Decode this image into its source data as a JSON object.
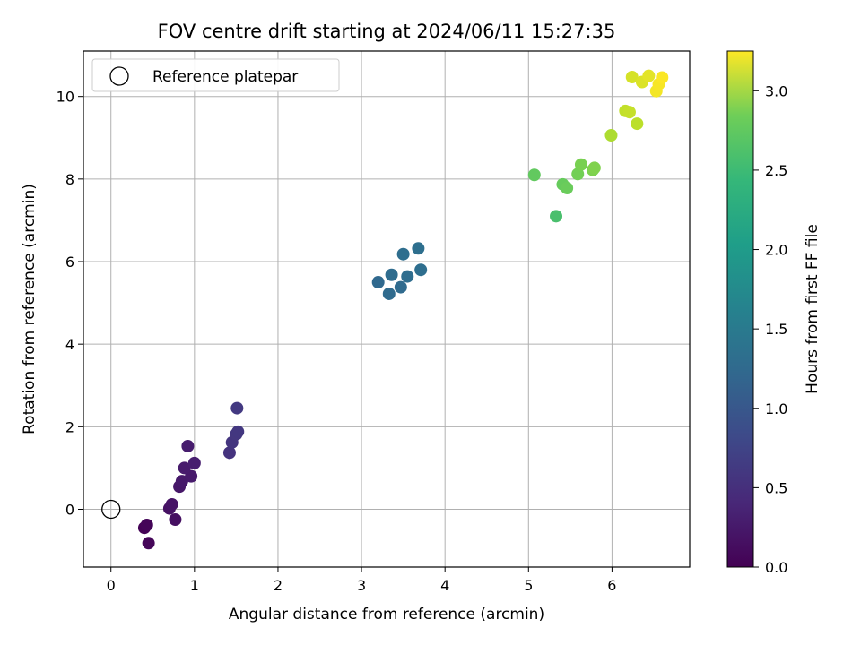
{
  "chart_data": {
    "type": "scatter",
    "title": "FOV centre drift starting at 2024/06/11 15:27:35",
    "xlabel": "Angular distance from reference (arcmin)",
    "ylabel": "Rotation from reference (arcmin)",
    "xlim": [
      -0.33,
      6.93
    ],
    "ylim": [
      -1.4,
      11.1
    ],
    "xticks": [
      0,
      1,
      2,
      3,
      4,
      5,
      6
    ],
    "yticks": [
      0,
      2,
      4,
      6,
      8,
      10
    ],
    "grid": true,
    "legend": {
      "placement": "top-left",
      "entries": [
        "Reference platepar"
      ]
    },
    "reference_point": {
      "label": "Reference platepar",
      "x": 0,
      "y": 0,
      "marker": "open-circle"
    },
    "colorbar": {
      "label": "Hours from first FF file",
      "colormap": "viridis",
      "range": [
        0.0,
        3.25
      ],
      "ticks": [
        "0.0",
        "0.5",
        "1.0",
        "1.5",
        "2.0",
        "2.5",
        "3.0"
      ]
    },
    "points": [
      {
        "x": 0.4,
        "y": -0.45,
        "hours": 0.02
      },
      {
        "x": 0.43,
        "y": -0.38,
        "hours": 0.04
      },
      {
        "x": 0.45,
        "y": -0.82,
        "hours": 0.05
      },
      {
        "x": 0.7,
        "y": 0.02,
        "hours": 0.15
      },
      {
        "x": 0.73,
        "y": 0.12,
        "hours": 0.17
      },
      {
        "x": 0.77,
        "y": -0.25,
        "hours": 0.13
      },
      {
        "x": 0.82,
        "y": 0.55,
        "hours": 0.2
      },
      {
        "x": 0.85,
        "y": 0.68,
        "hours": 0.22
      },
      {
        "x": 0.88,
        "y": 1.0,
        "hours": 0.24
      },
      {
        "x": 0.92,
        "y": 1.53,
        "hours": 0.26
      },
      {
        "x": 0.96,
        "y": 0.8,
        "hours": 0.23
      },
      {
        "x": 1.0,
        "y": 1.12,
        "hours": 0.27
      },
      {
        "x": 1.42,
        "y": 1.37,
        "hours": 0.48
      },
      {
        "x": 1.45,
        "y": 1.62,
        "hours": 0.5
      },
      {
        "x": 1.5,
        "y": 1.82,
        "hours": 0.52
      },
      {
        "x": 1.52,
        "y": 1.88,
        "hours": 0.53
      },
      {
        "x": 1.51,
        "y": 2.45,
        "hours": 0.55
      },
      {
        "x": 3.2,
        "y": 5.5,
        "hours": 1.1
      },
      {
        "x": 3.33,
        "y": 5.22,
        "hours": 1.12
      },
      {
        "x": 3.36,
        "y": 5.68,
        "hours": 1.14
      },
      {
        "x": 3.47,
        "y": 5.38,
        "hours": 1.13
      },
      {
        "x": 3.5,
        "y": 6.18,
        "hours": 1.16
      },
      {
        "x": 3.55,
        "y": 5.64,
        "hours": 1.15
      },
      {
        "x": 3.68,
        "y": 6.32,
        "hours": 1.18
      },
      {
        "x": 3.71,
        "y": 5.8,
        "hours": 1.17
      },
      {
        "x": 5.07,
        "y": 8.1,
        "hours": 2.45
      },
      {
        "x": 5.33,
        "y": 7.1,
        "hours": 2.3
      },
      {
        "x": 5.41,
        "y": 7.87,
        "hours": 2.48
      },
      {
        "x": 5.46,
        "y": 7.78,
        "hours": 2.5
      },
      {
        "x": 5.59,
        "y": 8.12,
        "hours": 2.55
      },
      {
        "x": 5.63,
        "y": 8.35,
        "hours": 2.58
      },
      {
        "x": 5.77,
        "y": 8.22,
        "hours": 2.6
      },
      {
        "x": 5.79,
        "y": 8.27,
        "hours": 2.62
      },
      {
        "x": 5.99,
        "y": 9.06,
        "hours": 2.85
      },
      {
        "x": 6.16,
        "y": 9.65,
        "hours": 2.95
      },
      {
        "x": 6.21,
        "y": 9.62,
        "hours": 2.97
      },
      {
        "x": 6.24,
        "y": 10.47,
        "hours": 3.05
      },
      {
        "x": 6.3,
        "y": 9.34,
        "hours": 2.92
      },
      {
        "x": 6.36,
        "y": 10.35,
        "hours": 3.08
      },
      {
        "x": 6.44,
        "y": 10.5,
        "hours": 3.12
      },
      {
        "x": 6.53,
        "y": 10.13,
        "hours": 3.2
      },
      {
        "x": 6.56,
        "y": 10.3,
        "hours": 3.22
      },
      {
        "x": 6.6,
        "y": 10.46,
        "hours": 3.24
      }
    ]
  }
}
